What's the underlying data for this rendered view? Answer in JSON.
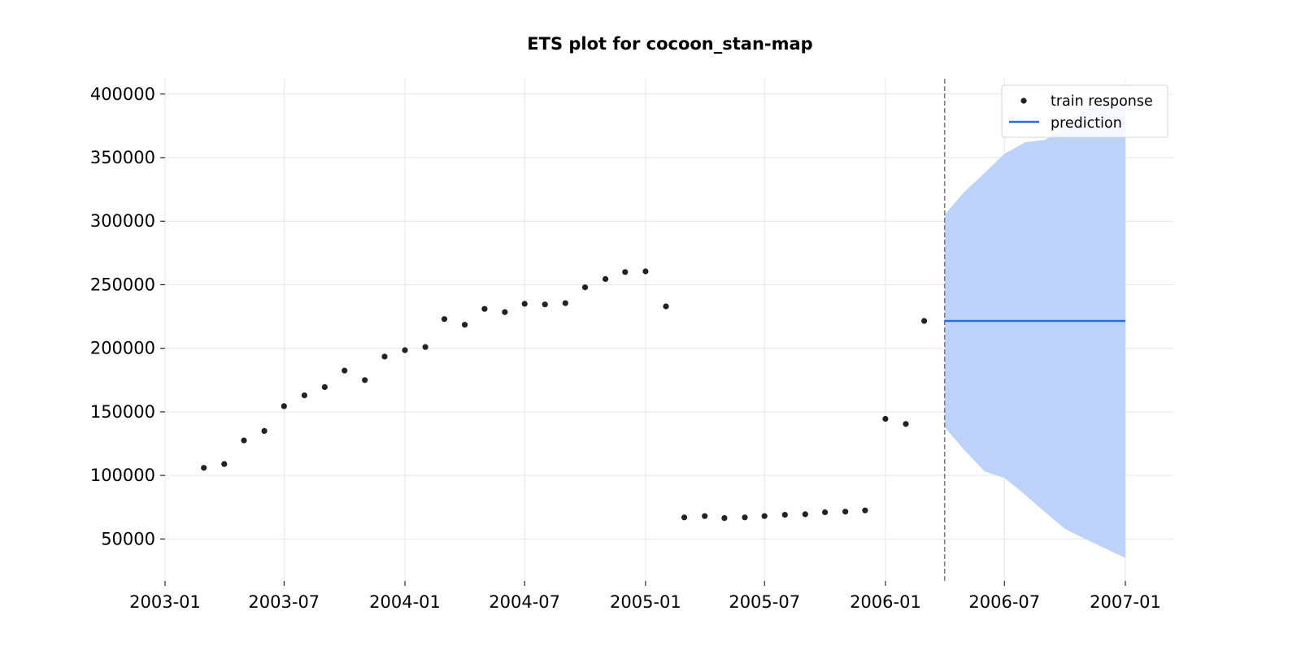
{
  "chart_data": {
    "type": "scatter",
    "title": "ETS plot for cocoon_stan-map",
    "xlabel": "",
    "ylabel": "",
    "x_axis": {
      "type": "date",
      "range": [
        "2003-01-01",
        "2007-03-15"
      ],
      "ticks": [
        "2003-01-01",
        "2003-07-01",
        "2004-01-01",
        "2004-07-01",
        "2005-01-01",
        "2005-07-01",
        "2006-01-01",
        "2006-07-01",
        "2007-01-01"
      ],
      "tick_labels": [
        "2003-01",
        "2003-07",
        "2004-01",
        "2004-07",
        "2005-01",
        "2005-07",
        "2006-01",
        "2006-07",
        "2007-01"
      ]
    },
    "y_axis": {
      "range": [
        17000,
        412000
      ],
      "ticks": [
        50000,
        100000,
        150000,
        200000,
        250000,
        300000,
        350000,
        400000
      ],
      "tick_labels": [
        "50000",
        "100000",
        "150000",
        "200000",
        "250000",
        "300000",
        "350000",
        "400000"
      ]
    },
    "grid": true,
    "legend_position": "top-right",
    "train_end_marker": "2006-04-01",
    "series": [
      {
        "name": "train response",
        "kind": "scatter",
        "color": "#222222",
        "points": [
          {
            "x": "2003-03-01",
            "y": 106000
          },
          {
            "x": "2003-04-01",
            "y": 109000
          },
          {
            "x": "2003-05-01",
            "y": 127500
          },
          {
            "x": "2003-06-01",
            "y": 135000
          },
          {
            "x": "2003-07-01",
            "y": 154500
          },
          {
            "x": "2003-08-01",
            "y": 163000
          },
          {
            "x": "2003-09-01",
            "y": 169500
          },
          {
            "x": "2003-10-01",
            "y": 182500
          },
          {
            "x": "2003-11-01",
            "y": 175000
          },
          {
            "x": "2003-12-01",
            "y": 193500
          },
          {
            "x": "2004-01-01",
            "y": 198500
          },
          {
            "x": "2004-02-01",
            "y": 201000
          },
          {
            "x": "2004-03-01",
            "y": 223000
          },
          {
            "x": "2004-04-01",
            "y": 218500
          },
          {
            "x": "2004-05-01",
            "y": 231000
          },
          {
            "x": "2004-06-01",
            "y": 228500
          },
          {
            "x": "2004-07-01",
            "y": 235000
          },
          {
            "x": "2004-08-01",
            "y": 234500
          },
          {
            "x": "2004-09-01",
            "y": 235500
          },
          {
            "x": "2004-10-01",
            "y": 248000
          },
          {
            "x": "2004-11-01",
            "y": 254500
          },
          {
            "x": "2004-12-01",
            "y": 260000
          },
          {
            "x": "2005-01-01",
            "y": 260500
          },
          {
            "x": "2005-02-01",
            "y": 233000
          },
          {
            "x": "2005-03-01",
            "y": 67000
          },
          {
            "x": "2005-04-01",
            "y": 68000
          },
          {
            "x": "2005-05-01",
            "y": 66500
          },
          {
            "x": "2005-06-01",
            "y": 67000
          },
          {
            "x": "2005-07-01",
            "y": 68000
          },
          {
            "x": "2005-08-01",
            "y": 69000
          },
          {
            "x": "2005-09-01",
            "y": 69500
          },
          {
            "x": "2005-10-01",
            "y": 71000
          },
          {
            "x": "2005-11-01",
            "y": 71500
          },
          {
            "x": "2005-12-01",
            "y": 72500
          },
          {
            "x": "2006-01-01",
            "y": 144500
          },
          {
            "x": "2006-02-01",
            "y": 140500
          },
          {
            "x": "2006-03-01",
            "y": 221500
          }
        ]
      },
      {
        "name": "prediction",
        "kind": "line",
        "color": "#2a6fe8",
        "points": [
          {
            "x": "2006-04-01",
            "y": 221500
          },
          {
            "x": "2007-01-01",
            "y": 221500
          }
        ]
      }
    ],
    "interval": {
      "color": "#bdd2f8",
      "points": [
        {
          "x": "2006-04-01",
          "lower": 138000,
          "upper": 305000
        },
        {
          "x": "2006-05-01",
          "lower": 120000,
          "upper": 323000
        },
        {
          "x": "2006-06-01",
          "lower": 103000,
          "upper": 338000
        },
        {
          "x": "2006-07-01",
          "lower": 98000,
          "upper": 353000
        },
        {
          "x": "2006-08-01",
          "lower": 85000,
          "upper": 362000
        },
        {
          "x": "2006-09-01",
          "lower": 71000,
          "upper": 364000
        },
        {
          "x": "2006-10-01",
          "lower": 58000,
          "upper": 374000
        },
        {
          "x": "2006-11-01",
          "lower": 50000,
          "upper": 388000
        },
        {
          "x": "2007-01-01",
          "lower": 35000,
          "upper": 393000
        }
      ]
    }
  }
}
